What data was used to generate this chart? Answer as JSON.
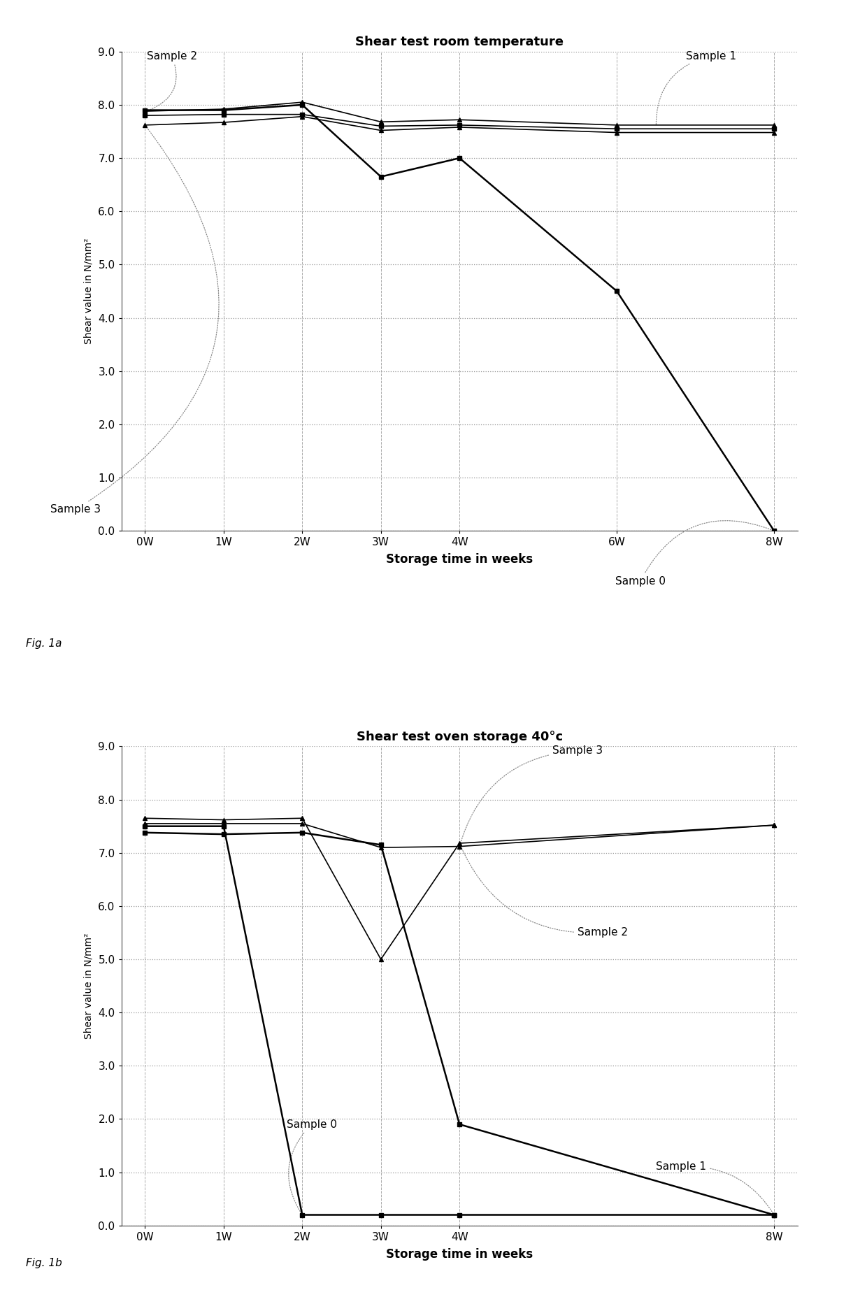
{
  "chart1": {
    "title": "Shear test room temperature",
    "xlabel": "Storage time in weeks",
    "ylabel": "Shear value in N/mm²",
    "xtick_labels": [
      "0W",
      "1W",
      "2W",
      "3W",
      "4W",
      "6W",
      "8W"
    ],
    "x_vals": [
      0,
      1,
      2,
      3,
      4,
      6,
      8
    ],
    "ylim": [
      0.0,
      9.0
    ],
    "yticks": [
      0.0,
      1.0,
      2.0,
      3.0,
      4.0,
      5.0,
      6.0,
      7.0,
      8.0,
      9.0
    ],
    "series": [
      {
        "name": "Sample 0",
        "x": [
          0,
          1,
          2,
          3,
          4,
          6,
          8
        ],
        "y": [
          7.9,
          7.9,
          8.0,
          6.65,
          7.0,
          4.5,
          0.0
        ],
        "marker": "s",
        "linewidth": 1.8,
        "markersize": 5
      },
      {
        "name": "Sample 1",
        "x": [
          0,
          1,
          2,
          3,
          4,
          6,
          8
        ],
        "y": [
          7.8,
          7.82,
          7.82,
          7.6,
          7.62,
          7.55,
          7.55
        ],
        "marker": "s",
        "linewidth": 1.2,
        "markersize": 4
      },
      {
        "name": "Sample 2",
        "x": [
          0,
          1,
          2,
          3,
          4,
          6,
          8
        ],
        "y": [
          7.88,
          7.92,
          8.05,
          7.68,
          7.72,
          7.62,
          7.62
        ],
        "marker": "^",
        "linewidth": 1.2,
        "markersize": 4
      },
      {
        "name": "Sample 3",
        "x": [
          0,
          1,
          2,
          3,
          4,
          6,
          8
        ],
        "y": [
          7.62,
          7.67,
          7.78,
          7.52,
          7.58,
          7.48,
          7.48
        ],
        "marker": "^",
        "linewidth": 1.2,
        "markersize": 4
      }
    ],
    "fig_label": "Fig. 1a"
  },
  "chart2": {
    "title": "Shear test oven storage 40°c",
    "xlabel": "Storage time in weeks",
    "ylabel": "Shear value in N/mm²",
    "xtick_labels": [
      "0W",
      "1W",
      "2W",
      "3W",
      "4W",
      "8W"
    ],
    "x_vals": [
      0,
      1,
      2,
      3,
      4,
      8
    ],
    "ylim": [
      0.0,
      9.0
    ],
    "yticks": [
      0.0,
      1.0,
      2.0,
      3.0,
      4.0,
      5.0,
      6.0,
      7.0,
      8.0,
      9.0
    ],
    "series": [
      {
        "name": "Sample 0",
        "x": [
          0,
          1,
          2,
          3,
          4,
          8
        ],
        "y": [
          7.5,
          7.5,
          0.2,
          0.2,
          0.2,
          0.2
        ],
        "marker": "s",
        "linewidth": 1.8,
        "markersize": 5
      },
      {
        "name": "Sample 1",
        "x": [
          0,
          1,
          2,
          3,
          4,
          8
        ],
        "y": [
          7.38,
          7.35,
          7.38,
          7.15,
          1.9,
          0.2
        ],
        "marker": "s",
        "linewidth": 1.8,
        "markersize": 5
      },
      {
        "name": "Sample 2",
        "x": [
          0,
          1,
          2,
          3,
          4,
          8
        ],
        "y": [
          7.65,
          7.62,
          7.65,
          5.0,
          7.18,
          7.52
        ],
        "marker": "^",
        "linewidth": 1.2,
        "markersize": 4
      },
      {
        "name": "Sample 3",
        "x": [
          0,
          1,
          2,
          3,
          4,
          8
        ],
        "y": [
          7.55,
          7.55,
          7.55,
          7.1,
          7.12,
          7.52
        ],
        "marker": "^",
        "linewidth": 1.2,
        "markersize": 4
      }
    ],
    "fig_label": "Fig. 1b"
  },
  "background_color": "#ffffff",
  "grid_color": "#999999",
  "line_color": "#000000",
  "annotation_color": "#888888"
}
